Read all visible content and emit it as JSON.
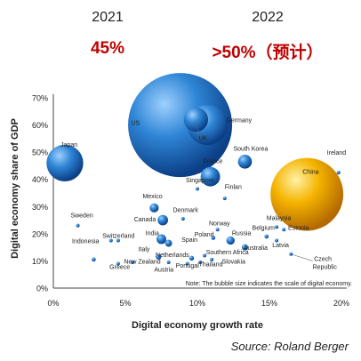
{
  "header": {
    "year_2021": "2021",
    "value_2021": "45%",
    "year_2022": "2022",
    "value_2022": ">50%（预计）"
  },
  "source": "Source: Roland Berger",
  "chart_data": {
    "type": "scatter",
    "xlabel": "Digital economy growth rate",
    "ylabel": "Digital economy share of GDP",
    "xlim": [
      0,
      20
    ],
    "ylim": [
      0,
      70
    ],
    "xticks": [
      "0%",
      "5%",
      "10%",
      "15%",
      "20%"
    ],
    "yticks": [
      "0%",
      "10%",
      "20%",
      "30%",
      "40%",
      "50%",
      "60%",
      "70%"
    ],
    "note": "Note: The bubble size indicates the scale of digital economy.",
    "grid": false,
    "colors": {
      "bubble": "#1f6fc0",
      "china": "#f5a300"
    },
    "points": [
      {
        "name": "US",
        "x": 8.8,
        "y": 60,
        "size": 15
      },
      {
        "name": "Germany",
        "x": 10.7,
        "y": 60,
        "size": 5.8
      },
      {
        "name": "UK",
        "x": 9.9,
        "y": 62,
        "size": 3.5
      },
      {
        "name": "Japan",
        "x": 0.8,
        "y": 46,
        "size": 5.3
      },
      {
        "name": "Ireland",
        "x": 19.8,
        "y": 42.5,
        "size": 0.5
      },
      {
        "name": "South Korea",
        "x": 13.3,
        "y": 46.5,
        "size": 2.0
      },
      {
        "name": "China",
        "x": 17.6,
        "y": 34.5,
        "size": 10.5,
        "highlight": true
      },
      {
        "name": "France",
        "x": 10.9,
        "y": 41,
        "size": 2.8
      },
      {
        "name": "Singapore",
        "x": 10.0,
        "y": 36.5,
        "size": 0.4
      },
      {
        "name": "Finlan",
        "x": 11.9,
        "y": 33,
        "size": 0.4
      },
      {
        "name": "Mexico",
        "x": 7.0,
        "y": 29.5,
        "size": 1.3
      },
      {
        "name": "Denmark",
        "x": 9.0,
        "y": 25.5,
        "size": 0.3
      },
      {
        "name": "Canada",
        "x": 7.6,
        "y": 25,
        "size": 1.5
      },
      {
        "name": "Sweden",
        "x": 1.7,
        "y": 23,
        "size": 0.5
      },
      {
        "name": "Switzerland",
        "x": 4.5,
        "y": 17.5,
        "size": 0.5
      },
      {
        "name": "India",
        "x": 7.5,
        "y": 18,
        "size": 1.4
      },
      {
        "name": "Spain",
        "x": 8.0,
        "y": 16.5,
        "size": 1.0
      },
      {
        "name": "Norway",
        "x": 11.4,
        "y": 21.5,
        "size": 0.35
      },
      {
        "name": "Poland",
        "x": 11.1,
        "y": 18.5,
        "size": 0.6
      },
      {
        "name": "Russia",
        "x": 12.3,
        "y": 17.5,
        "size": 1.2
      },
      {
        "name": "Belgium",
        "x": 14.8,
        "y": 19,
        "size": 0.6
      },
      {
        "name": "Estonia",
        "x": 16.0,
        "y": 21.5,
        "size": 0.2
      },
      {
        "name": "Malaysia",
        "x": 15.5,
        "y": 22.5,
        "size": 0.3
      },
      {
        "name": "Latvia",
        "x": 15.5,
        "y": 17.5,
        "size": 0.2
      },
      {
        "name": "Australia",
        "x": 13.3,
        "y": 15,
        "size": 0.9
      },
      {
        "name": "Indonesia",
        "x": 4.0,
        "y": 17.5,
        "size": 0.4
      },
      {
        "name": "Italy",
        "x": 7.3,
        "y": 11.5,
        "size": 0.8
      },
      {
        "name": "Netherlands",
        "x": 9.6,
        "y": 11,
        "size": 0.7
      },
      {
        "name": "Southern Africa",
        "x": 10.5,
        "y": 12,
        "size": 0.5
      },
      {
        "name": "Slovakia",
        "x": 11.0,
        "y": 10.5,
        "size": 0.3
      },
      {
        "name": "Thailand",
        "x": 10.2,
        "y": 9.5,
        "size": 0.4
      },
      {
        "name": "Portugal",
        "x": 9.3,
        "y": 9,
        "size": 0.4
      },
      {
        "name": "Austria",
        "x": 8.0,
        "y": 9.5,
        "size": 0.5
      },
      {
        "name": "New Zealand",
        "x": 5.5,
        "y": 9.5,
        "size": 0.3
      },
      {
        "name": "Greece",
        "x": 4.5,
        "y": 9.0,
        "size": 0.3
      },
      {
        "name": "Czech Republic",
        "x": 16.5,
        "y": 12.5,
        "size": 0.3
      },
      {
        "name": "",
        "x": 2.8,
        "y": 10.5,
        "size": 0.6
      }
    ],
    "labels": [
      {
        "text": "US",
        "x": 6.0,
        "y": 60,
        "anchor": "end"
      },
      {
        "text": "Germany",
        "x": 12.0,
        "y": 61,
        "anchor": "start"
      },
      {
        "text": "UK",
        "x": 10.1,
        "y": 54.5,
        "anchor": "start"
      },
      {
        "text": "Japan",
        "x": 0.5,
        "y": 52,
        "anchor": "start"
      },
      {
        "text": "Ireland",
        "x": 19.0,
        "y": 49,
        "anchor": "start"
      },
      {
        "text": "South Korea",
        "x": 12.5,
        "y": 50.5,
        "anchor": "start"
      },
      {
        "text": "China",
        "x": 17.3,
        "y": 42,
        "anchor": "start"
      },
      {
        "text": "France",
        "x": 10.4,
        "y": 46,
        "anchor": "start"
      },
      {
        "text": "Singapore",
        "x": 9.2,
        "y": 39,
        "anchor": "start"
      },
      {
        "text": "Finlan",
        "x": 11.9,
        "y": 36.5,
        "anchor": "start"
      },
      {
        "text": "Mexico",
        "x": 6.2,
        "y": 33,
        "anchor": "start"
      },
      {
        "text": "Denmark",
        "x": 8.3,
        "y": 28,
        "anchor": "start"
      },
      {
        "text": "Canada",
        "x": 5.6,
        "y": 24.5,
        "anchor": "start"
      },
      {
        "text": "Sweden",
        "x": 1.2,
        "y": 26,
        "anchor": "start"
      },
      {
        "text": "Switzerland",
        "x": 3.4,
        "y": 18.5,
        "anchor": "start"
      },
      {
        "text": "India",
        "x": 6.4,
        "y": 19.5,
        "anchor": "start"
      },
      {
        "text": "Spain",
        "x": 8.9,
        "y": 17,
        "anchor": "start"
      },
      {
        "text": "Norway",
        "x": 10.8,
        "y": 23,
        "anchor": "start"
      },
      {
        "text": "Poland",
        "x": 9.8,
        "y": 19,
        "anchor": "start"
      },
      {
        "text": "Russia",
        "x": 12.4,
        "y": 19.5,
        "anchor": "start"
      },
      {
        "text": "Malaysia",
        "x": 14.8,
        "y": 25,
        "anchor": "start"
      },
      {
        "text": "Belgium",
        "x": 13.8,
        "y": 21.5,
        "anchor": "start"
      },
      {
        "text": "Estonia",
        "x": 16.3,
        "y": 21.5,
        "anchor": "start"
      },
      {
        "text": "Latvia",
        "x": 15.2,
        "y": 15,
        "anchor": "start"
      },
      {
        "text": "Australia",
        "x": 13.2,
        "y": 14,
        "anchor": "start"
      },
      {
        "text": "Indonesia",
        "x": 1.3,
        "y": 16.5,
        "anchor": "start"
      },
      {
        "text": "Italy",
        "x": 5.9,
        "y": 13.5,
        "anchor": "start"
      },
      {
        "text": "Netherlands",
        "x": 7.1,
        "y": 11.5,
        "anchor": "start"
      },
      {
        "text": "Southern Africa",
        "x": 10.6,
        "y": 12.5,
        "anchor": "start"
      },
      {
        "text": "Slovakia",
        "x": 11.7,
        "y": 9.0,
        "anchor": "start"
      },
      {
        "text": "Thailand",
        "x": 10.1,
        "y": 8.0,
        "anchor": "start"
      },
      {
        "text": "Portugal",
        "x": 8.5,
        "y": 7.5,
        "anchor": "start"
      },
      {
        "text": "Austria",
        "x": 7.0,
        "y": 6.0,
        "anchor": "start"
      },
      {
        "text": "New Zealand",
        "x": 4.9,
        "y": 9.0,
        "anchor": "start"
      },
      {
        "text": "Greece",
        "x": 3.9,
        "y": 7.0,
        "anchor": "start"
      },
      {
        "text": "Czech",
        "x": 18.1,
        "y": 10.0,
        "anchor": "start"
      },
      {
        "text": "Republic",
        "x": 18.0,
        "y": 7.0,
        "anchor": "start"
      }
    ]
  }
}
